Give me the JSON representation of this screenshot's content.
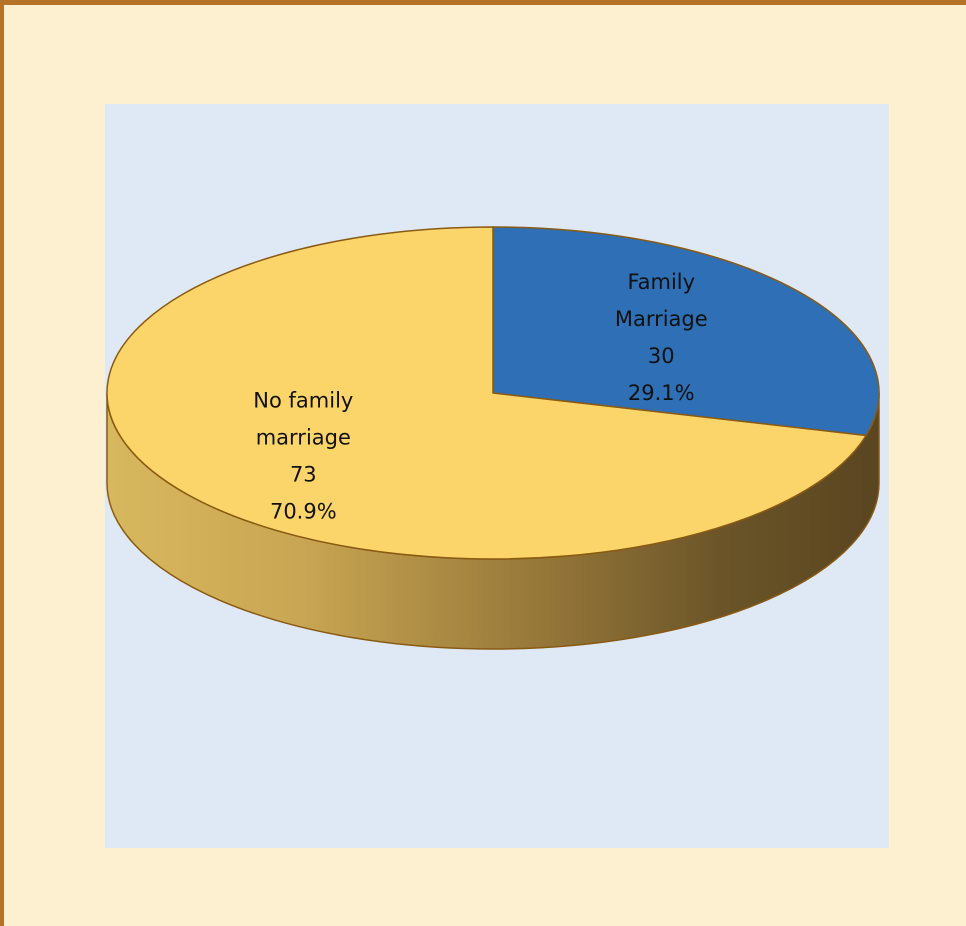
{
  "chart_data": {
    "type": "pie",
    "style": "3d",
    "slices": [
      {
        "label_lines": [
          "Family",
          "Marriage"
        ],
        "value": 30,
        "percent": "29.1%",
        "color": "#2e6fb5"
      },
      {
        "label_lines": [
          "No family",
          "marriage"
        ],
        "value": 73,
        "percent": "70.9%",
        "color": "#fbd56a"
      }
    ],
    "colors": {
      "frame_background": "#fdf0d0",
      "frame_border": "#b5732a",
      "plot_background": "#dfe9f5",
      "slice_outline": "#8a5a12"
    }
  }
}
